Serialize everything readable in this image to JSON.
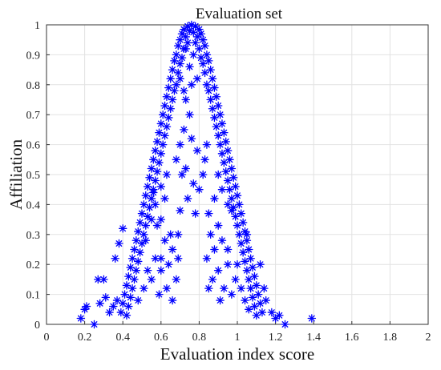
{
  "chart_data": {
    "type": "scatter",
    "title": "Evaluation set",
    "xlabel": "Evaluation index score",
    "ylabel": "Affiliation",
    "xlim": [
      0,
      2
    ],
    "ylim": [
      0,
      1
    ],
    "x_ticks": [
      "0",
      "0.2",
      "0.4",
      "0.6",
      "0.8",
      "1",
      "1.2",
      "1.4",
      "1.6",
      "1.8",
      "2"
    ],
    "y_ticks": [
      "0",
      "0.1",
      "0.2",
      "0.3",
      "0.4",
      "0.5",
      "0.6",
      "0.7",
      "0.8",
      "0.9",
      "1"
    ],
    "grid": true,
    "marker": "asterisk",
    "color": "#0000ff",
    "series": [
      {
        "points": [
          [
            0.76,
            1.0
          ],
          [
            0.74,
            0.995
          ],
          [
            0.78,
            0.995
          ],
          [
            0.72,
            0.985
          ],
          [
            0.8,
            0.985
          ],
          [
            0.75,
            0.98
          ],
          [
            0.77,
            0.975
          ],
          [
            0.71,
            0.97
          ],
          [
            0.81,
            0.97
          ],
          [
            0.73,
            0.96
          ],
          [
            0.79,
            0.96
          ],
          [
            0.7,
            0.95
          ],
          [
            0.82,
            0.95
          ],
          [
            0.74,
            0.94
          ],
          [
            0.78,
            0.94
          ],
          [
            0.69,
            0.93
          ],
          [
            0.83,
            0.93
          ],
          [
            0.72,
            0.92
          ],
          [
            0.8,
            0.92
          ],
          [
            0.68,
            0.9
          ],
          [
            0.84,
            0.9
          ],
          [
            0.71,
            0.89
          ],
          [
            0.81,
            0.89
          ],
          [
            0.67,
            0.88
          ],
          [
            0.85,
            0.88
          ],
          [
            0.7,
            0.87
          ],
          [
            0.82,
            0.87
          ],
          [
            0.66,
            0.85
          ],
          [
            0.86,
            0.85
          ],
          [
            0.69,
            0.84
          ],
          [
            0.83,
            0.84
          ],
          [
            0.65,
            0.82
          ],
          [
            0.87,
            0.82
          ],
          [
            0.68,
            0.8
          ],
          [
            0.84,
            0.8
          ],
          [
            0.64,
            0.79
          ],
          [
            0.88,
            0.79
          ],
          [
            0.67,
            0.78
          ],
          [
            0.85,
            0.78
          ],
          [
            0.63,
            0.76
          ],
          [
            0.89,
            0.76
          ],
          [
            0.66,
            0.75
          ],
          [
            0.86,
            0.75
          ],
          [
            0.62,
            0.73
          ],
          [
            0.9,
            0.73
          ],
          [
            0.65,
            0.72
          ],
          [
            0.87,
            0.72
          ],
          [
            0.61,
            0.7
          ],
          [
            0.91,
            0.7
          ],
          [
            0.64,
            0.69
          ],
          [
            0.88,
            0.69
          ],
          [
            0.6,
            0.67
          ],
          [
            0.92,
            0.67
          ],
          [
            0.63,
            0.66
          ],
          [
            0.89,
            0.66
          ],
          [
            0.59,
            0.64
          ],
          [
            0.93,
            0.64
          ],
          [
            0.62,
            0.63
          ],
          [
            0.9,
            0.63
          ],
          [
            0.58,
            0.61
          ],
          [
            0.94,
            0.61
          ],
          [
            0.61,
            0.6
          ],
          [
            0.91,
            0.6
          ],
          [
            0.57,
            0.58
          ],
          [
            0.95,
            0.58
          ],
          [
            0.6,
            0.57
          ],
          [
            0.92,
            0.57
          ],
          [
            0.56,
            0.55
          ],
          [
            0.96,
            0.55
          ],
          [
            0.59,
            0.54
          ],
          [
            0.93,
            0.54
          ],
          [
            0.55,
            0.52
          ],
          [
            0.97,
            0.52
          ],
          [
            0.58,
            0.51
          ],
          [
            0.94,
            0.51
          ],
          [
            0.54,
            0.49
          ],
          [
            0.98,
            0.49
          ],
          [
            0.57,
            0.48
          ],
          [
            0.95,
            0.48
          ],
          [
            0.53,
            0.46
          ],
          [
            0.99,
            0.46
          ],
          [
            0.56,
            0.45
          ],
          [
            0.96,
            0.45
          ],
          [
            0.52,
            0.43
          ],
          [
            1.0,
            0.43
          ],
          [
            0.55,
            0.42
          ],
          [
            0.97,
            0.42
          ],
          [
            0.51,
            0.4
          ],
          [
            1.01,
            0.4
          ],
          [
            0.54,
            0.39
          ],
          [
            0.98,
            0.39
          ],
          [
            0.5,
            0.37
          ],
          [
            1.02,
            0.37
          ],
          [
            0.53,
            0.36
          ],
          [
            0.99,
            0.36
          ],
          [
            0.49,
            0.34
          ],
          [
            1.03,
            0.34
          ],
          [
            0.52,
            0.33
          ],
          [
            1.0,
            0.33
          ],
          [
            0.48,
            0.31
          ],
          [
            1.04,
            0.31
          ],
          [
            0.51,
            0.3
          ],
          [
            1.01,
            0.3
          ],
          [
            0.47,
            0.28
          ],
          [
            1.05,
            0.28
          ],
          [
            0.5,
            0.27
          ],
          [
            1.02,
            0.27
          ],
          [
            0.46,
            0.25
          ],
          [
            1.06,
            0.25
          ],
          [
            0.49,
            0.24
          ],
          [
            1.03,
            0.24
          ],
          [
            0.45,
            0.22
          ],
          [
            1.07,
            0.22
          ],
          [
            0.48,
            0.21
          ],
          [
            1.04,
            0.21
          ],
          [
            0.44,
            0.19
          ],
          [
            1.08,
            0.19
          ],
          [
            0.47,
            0.18
          ],
          [
            1.05,
            0.18
          ],
          [
            0.43,
            0.16
          ],
          [
            1.09,
            0.16
          ],
          [
            0.46,
            0.15
          ],
          [
            1.06,
            0.15
          ],
          [
            0.42,
            0.13
          ],
          [
            1.1,
            0.13
          ],
          [
            0.45,
            0.12
          ],
          [
            1.07,
            0.12
          ],
          [
            0.41,
            0.1
          ],
          [
            1.11,
            0.1
          ],
          [
            0.44,
            0.09
          ],
          [
            1.08,
            0.09
          ],
          [
            0.4,
            0.07
          ],
          [
            1.12,
            0.07
          ],
          [
            0.43,
            0.06
          ],
          [
            1.09,
            0.06
          ],
          [
            0.39,
            0.04
          ],
          [
            1.13,
            0.04
          ],
          [
            0.42,
            0.03
          ],
          [
            1.1,
            0.03
          ],
          [
            0.6,
            0.35
          ],
          [
            0.65,
            0.3
          ],
          [
            0.62,
            0.28
          ],
          [
            0.58,
            0.33
          ],
          [
            0.66,
            0.25
          ],
          [
            0.64,
            0.2
          ],
          [
            0.6,
            0.18
          ],
          [
            0.68,
            0.15
          ],
          [
            0.55,
            0.15
          ],
          [
            0.59,
            0.1
          ],
          [
            0.63,
            0.12
          ],
          [
            0.66,
            0.08
          ],
          [
            0.57,
            0.22
          ],
          [
            0.69,
            0.22
          ],
          [
            0.9,
            0.33
          ],
          [
            0.86,
            0.3
          ],
          [
            0.92,
            0.28
          ],
          [
            0.88,
            0.25
          ],
          [
            0.84,
            0.22
          ],
          [
            0.9,
            0.18
          ],
          [
            0.95,
            0.2
          ],
          [
            0.87,
            0.15
          ],
          [
            0.93,
            0.12
          ],
          [
            0.97,
            0.1
          ],
          [
            0.91,
            0.08
          ],
          [
            0.85,
            0.12
          ],
          [
            0.99,
            0.15
          ],
          [
            1.02,
            0.12
          ],
          [
            0.3,
            0.15
          ],
          [
            0.27,
            0.15
          ],
          [
            0.28,
            0.07
          ],
          [
            0.31,
            0.09
          ],
          [
            0.18,
            0.02
          ],
          [
            0.2,
            0.05
          ],
          [
            0.21,
            0.06
          ],
          [
            0.25,
            0.0
          ],
          [
            0.35,
            0.06
          ],
          [
            0.37,
            0.08
          ],
          [
            0.33,
            0.04
          ],
          [
            1.15,
            0.08
          ],
          [
            1.18,
            0.04
          ],
          [
            1.2,
            0.02
          ],
          [
            1.22,
            0.03
          ],
          [
            1.25,
            0.0
          ],
          [
            1.14,
            0.12
          ],
          [
            1.12,
            0.2
          ],
          [
            1.39,
            0.02
          ],
          [
            0.83,
            0.55
          ],
          [
            0.82,
            0.5
          ],
          [
            0.8,
            0.45
          ],
          [
            0.74,
            0.42
          ],
          [
            0.78,
            0.37
          ],
          [
            0.73,
            0.52
          ],
          [
            0.7,
            0.6
          ],
          [
            0.72,
            0.65
          ],
          [
            0.75,
            0.7
          ],
          [
            0.68,
            0.55
          ],
          [
            0.84,
            0.6
          ],
          [
            0.77,
            0.47
          ],
          [
            0.79,
            0.58
          ],
          [
            0.71,
            0.5
          ],
          [
            0.76,
            0.62
          ],
          [
            0.73,
            0.75
          ],
          [
            0.79,
            0.82
          ],
          [
            0.7,
            0.82
          ],
          [
            0.75,
            0.86
          ],
          [
            0.77,
            0.9
          ],
          [
            0.73,
            0.92
          ],
          [
            0.72,
            0.78
          ],
          [
            0.76,
            0.8
          ],
          [
            0.62,
            0.42
          ],
          [
            0.6,
            0.46
          ],
          [
            0.57,
            0.4
          ],
          [
            0.63,
            0.5
          ],
          [
            0.56,
            0.44
          ],
          [
            0.92,
            0.45
          ],
          [
            0.95,
            0.4
          ],
          [
            0.9,
            0.5
          ],
          [
            0.97,
            0.38
          ],
          [
            0.88,
            0.42
          ],
          [
            0.7,
            0.38
          ],
          [
            0.85,
            0.37
          ],
          [
            0.69,
            0.3
          ],
          [
            0.52,
            0.28
          ],
          [
            1.05,
            0.3
          ],
          [
            0.55,
            0.35
          ],
          [
            0.6,
            0.22
          ],
          [
            0.95,
            0.25
          ],
          [
            0.53,
            0.18
          ],
          [
            1.0,
            0.2
          ],
          [
            0.51,
            0.12
          ],
          [
            1.04,
            0.08
          ],
          [
            0.48,
            0.08
          ],
          [
            1.06,
            0.05
          ],
          [
            0.38,
            0.27
          ],
          [
            0.4,
            0.32
          ],
          [
            0.36,
            0.22
          ]
        ]
      }
    ]
  }
}
